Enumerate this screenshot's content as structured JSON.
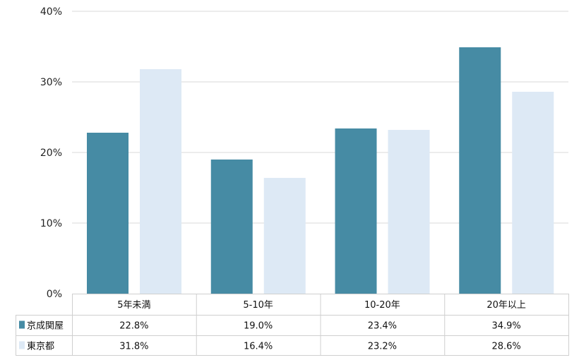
{
  "chart_data": {
    "type": "bar",
    "categories": [
      "5年未満",
      "5-10年",
      "10-20年",
      "20年以上"
    ],
    "series": [
      {
        "name": "京成関屋",
        "values": [
          22.8,
          19.0,
          23.4,
          34.9
        ],
        "labels": [
          "22.8%",
          "19.0%",
          "23.4%",
          "34.9%"
        ],
        "color": "#468BA4"
      },
      {
        "name": "東京都",
        "values": [
          31.8,
          16.4,
          23.2,
          28.6
        ],
        "labels": [
          "31.8%",
          "16.4%",
          "23.2%",
          "28.6%"
        ],
        "color": "#DDE9F5"
      }
    ],
    "ylim": [
      0,
      40
    ],
    "yticks": [
      "0%",
      "10%",
      "20%",
      "30%",
      "40%"
    ],
    "grid": true,
    "legend": "data-table"
  }
}
